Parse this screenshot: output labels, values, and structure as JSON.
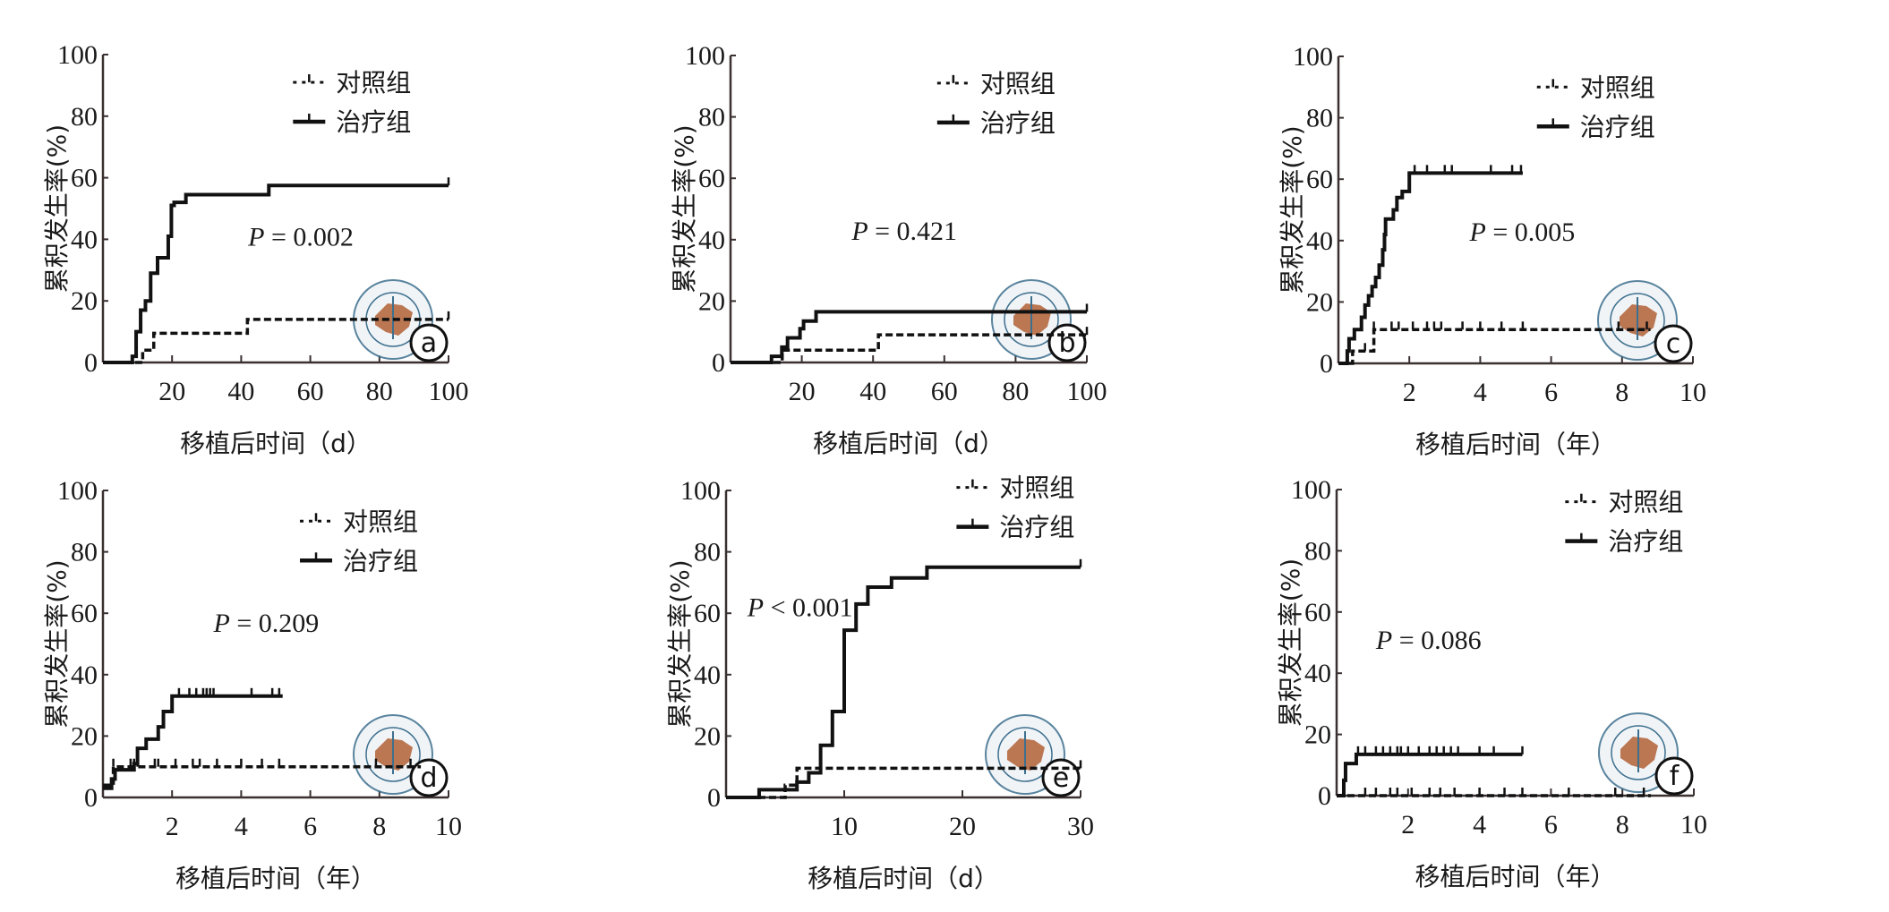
{
  "chart_data": [
    {
      "type": "line",
      "panel": "a",
      "title": "",
      "xlabel": "移植后时间（d）",
      "ylabel": "累积发生率(%)",
      "xlim": [
        0,
        100
      ],
      "ylim": [
        0,
        100
      ],
      "xticks": [
        20,
        40,
        60,
        80,
        100
      ],
      "yticks": [
        0,
        20,
        40,
        60,
        80,
        100
      ],
      "p_value": "P = 0.002",
      "legend_placement": "top-right",
      "series": [
        {
          "name": "对照组",
          "style": "dashed",
          "steps": [
            [
              0,
              0
            ],
            [
              11.5,
              4
            ],
            [
              14.7,
              9.5
            ],
            [
              41.8,
              14
            ],
            [
              100,
              14
            ]
          ],
          "censored": [
            100
          ]
        },
        {
          "name": "治疗组",
          "style": "solid",
          "steps": [
            [
              0,
              0
            ],
            [
              8.5,
              2
            ],
            [
              9.6,
              10
            ],
            [
              10.9,
              17
            ],
            [
              12.3,
              20
            ],
            [
              13.8,
              29
            ],
            [
              15.8,
              34
            ],
            [
              18.9,
              41
            ],
            [
              19.8,
              51
            ],
            [
              20.6,
              52
            ],
            [
              24,
              54.5
            ],
            [
              48,
              57.5
            ],
            [
              100,
              57.5
            ]
          ],
          "censored": [
            100
          ]
        }
      ]
    },
    {
      "type": "line",
      "panel": "b",
      "title": "",
      "xlabel": "移植后时间（d）",
      "ylabel": "累积发生率(%)",
      "xlim": [
        0,
        100
      ],
      "ylim": [
        0,
        100
      ],
      "xticks": [
        20,
        40,
        60,
        80,
        100
      ],
      "yticks": [
        0,
        20,
        40,
        60,
        80,
        100
      ],
      "p_value": "P = 0.421",
      "legend_placement": "top-right",
      "series": [
        {
          "name": "对照组",
          "style": "dashed",
          "steps": [
            [
              0,
              0
            ],
            [
              14.5,
              4
            ],
            [
              41.5,
              9
            ],
            [
              100,
              9
            ]
          ],
          "censored": [
            100
          ]
        },
        {
          "name": "治疗组",
          "style": "solid",
          "steps": [
            [
              0,
              0
            ],
            [
              11.5,
              2
            ],
            [
              14.4,
              5
            ],
            [
              16,
              8
            ],
            [
              19.5,
              11
            ],
            [
              20.5,
              13.5
            ],
            [
              24,
              16.5
            ],
            [
              100,
              16.5
            ]
          ],
          "censored": [
            100
          ]
        }
      ]
    },
    {
      "type": "line",
      "panel": "c",
      "title": "",
      "xlabel": "移植后时间（年）",
      "ylabel": "累积发生率(%)",
      "xlim": [
        0,
        10
      ],
      "ylim": [
        0,
        100
      ],
      "xticks": [
        2,
        4,
        6,
        8,
        10
      ],
      "yticks": [
        0,
        20,
        40,
        60,
        80,
        100
      ],
      "p_value": "P = 0.005",
      "legend_placement": "top-right",
      "series": [
        {
          "name": "对照组",
          "style": "dashed",
          "steps": [
            [
              0,
              0
            ],
            [
              0.4,
              4
            ],
            [
              1.0,
              11
            ],
            [
              8.8,
              11
            ]
          ],
          "censored": [
            0.75,
            1.0,
            1.5,
            1.7,
            2.1,
            2.5,
            2.7,
            2.9,
            3.5,
            4.0,
            4.6,
            5.2,
            7.9,
            8.7
          ]
        },
        {
          "name": "治疗组",
          "style": "solid",
          "steps": [
            [
              0,
              0
            ],
            [
              0.25,
              4
            ],
            [
              0.3,
              8
            ],
            [
              0.45,
              11
            ],
            [
              0.65,
              15
            ],
            [
              0.75,
              19
            ],
            [
              0.85,
              22
            ],
            [
              0.95,
              25
            ],
            [
              1.05,
              28
            ],
            [
              1.15,
              32
            ],
            [
              1.25,
              37
            ],
            [
              1.3,
              42
            ],
            [
              1.33,
              47
            ],
            [
              1.55,
              50
            ],
            [
              1.65,
              54
            ],
            [
              1.8,
              56
            ],
            [
              2.0,
              62
            ],
            [
              5.2,
              62
            ]
          ],
          "censored": [
            2.15,
            2.5,
            3.0,
            3.2,
            4.3,
            4.9,
            5.15
          ]
        }
      ]
    },
    {
      "type": "line",
      "panel": "d",
      "title": "",
      "xlabel": "移植后时间（年）",
      "ylabel": "累积发生率(%)",
      "xlim": [
        0,
        10
      ],
      "ylim": [
        0,
        100
      ],
      "xticks": [
        2,
        4,
        6,
        8,
        10
      ],
      "yticks": [
        0,
        20,
        40,
        60,
        80,
        100
      ],
      "p_value": "P = 0.209",
      "legend_placement": "top-right",
      "series": [
        {
          "name": "对照组",
          "style": "dashed",
          "steps": [
            [
              0,
              4
            ],
            [
              0.3,
              10
            ],
            [
              9.2,
              10
            ]
          ],
          "censored": [
            0.3,
            0.8,
            0.9,
            1.0,
            1.5,
            1.6,
            2.1,
            2.6,
            2.8,
            3.3,
            4.0,
            4.6,
            5.1,
            7.9,
            8.9
          ]
        },
        {
          "name": "治疗组",
          "style": "solid",
          "steps": [
            [
              0,
              3
            ],
            [
              0.25,
              6
            ],
            [
              0.35,
              9
            ],
            [
              0.9,
              11
            ],
            [
              1.0,
              16
            ],
            [
              1.25,
              19
            ],
            [
              1.6,
              23
            ],
            [
              1.75,
              28
            ],
            [
              2.0,
              33
            ],
            [
              5.2,
              33
            ]
          ],
          "censored": [
            2.2,
            2.5,
            2.7,
            2.9,
            3.0,
            3.1,
            3.2,
            4.3,
            4.9,
            5.1
          ]
        }
      ]
    },
    {
      "type": "line",
      "panel": "e",
      "title": "",
      "xlabel": "移植后时间（d）",
      "ylabel": "累积发生率(%)",
      "xlim": [
        0,
        30
      ],
      "ylim": [
        0,
        100
      ],
      "xticks": [
        10,
        20,
        30
      ],
      "yticks": [
        0,
        20,
        40,
        60,
        80,
        100
      ],
      "p_value": "P < 0.001",
      "legend_placement": "top-right",
      "series": [
        {
          "name": "对照组",
          "style": "dashed",
          "steps": [
            [
              0,
              0
            ],
            [
              5,
              4
            ],
            [
              6,
              9.5
            ],
            [
              30,
              9.5
            ]
          ],
          "censored": [
            30
          ]
        },
        {
          "name": "治疗组",
          "style": "solid",
          "steps": [
            [
              0,
              0
            ],
            [
              2.8,
              2.5
            ],
            [
              6,
              5
            ],
            [
              7,
              8
            ],
            [
              8,
              17
            ],
            [
              9,
              28
            ],
            [
              10,
              54.5
            ],
            [
              11,
              63
            ],
            [
              12,
              68.5
            ],
            [
              14,
              71.5
            ],
            [
              17,
              75
            ],
            [
              30,
              75
            ]
          ],
          "censored": [
            30
          ]
        }
      ]
    },
    {
      "type": "line",
      "panel": "f",
      "title": "",
      "xlabel": "移植后时间（年）",
      "ylabel": "累积发生率(%)",
      "xlim": [
        0,
        10
      ],
      "ylim": [
        0,
        100
      ],
      "xticks": [
        2,
        4,
        6,
        8,
        10
      ],
      "yticks": [
        0,
        20,
        40,
        60,
        80,
        100
      ],
      "p_value": "P = 0.086",
      "legend_placement": "top-right",
      "series": [
        {
          "name": "对照组",
          "style": "dashed",
          "steps": [
            [
              0,
              0
            ],
            [
              8.8,
              0
            ]
          ],
          "censored": [
            0.8,
            1.1,
            1.5,
            1.7,
            2.1,
            2.6,
            2.9,
            3.3,
            4.0,
            4.7,
            5.2,
            6.5,
            7.8,
            8.6
          ]
        },
        {
          "name": "治疗组",
          "style": "solid",
          "steps": [
            [
              0,
              0
            ],
            [
              0.2,
              5
            ],
            [
              0.25,
              10.5
            ],
            [
              0.55,
              13.5
            ],
            [
              5.2,
              13.5
            ]
          ],
          "censored": [
            0.6,
            0.8,
            1.1,
            1.3,
            1.5,
            1.7,
            1.8,
            2.0,
            2.3,
            2.6,
            2.8,
            3.0,
            3.2,
            3.4,
            4.0,
            4.4,
            5.2
          ]
        }
      ]
    }
  ],
  "colors": {
    "line": "#111111",
    "axis": "#3a3030",
    "seal_blue": "#3d6f8e",
    "seal_map": "#b5683f"
  }
}
